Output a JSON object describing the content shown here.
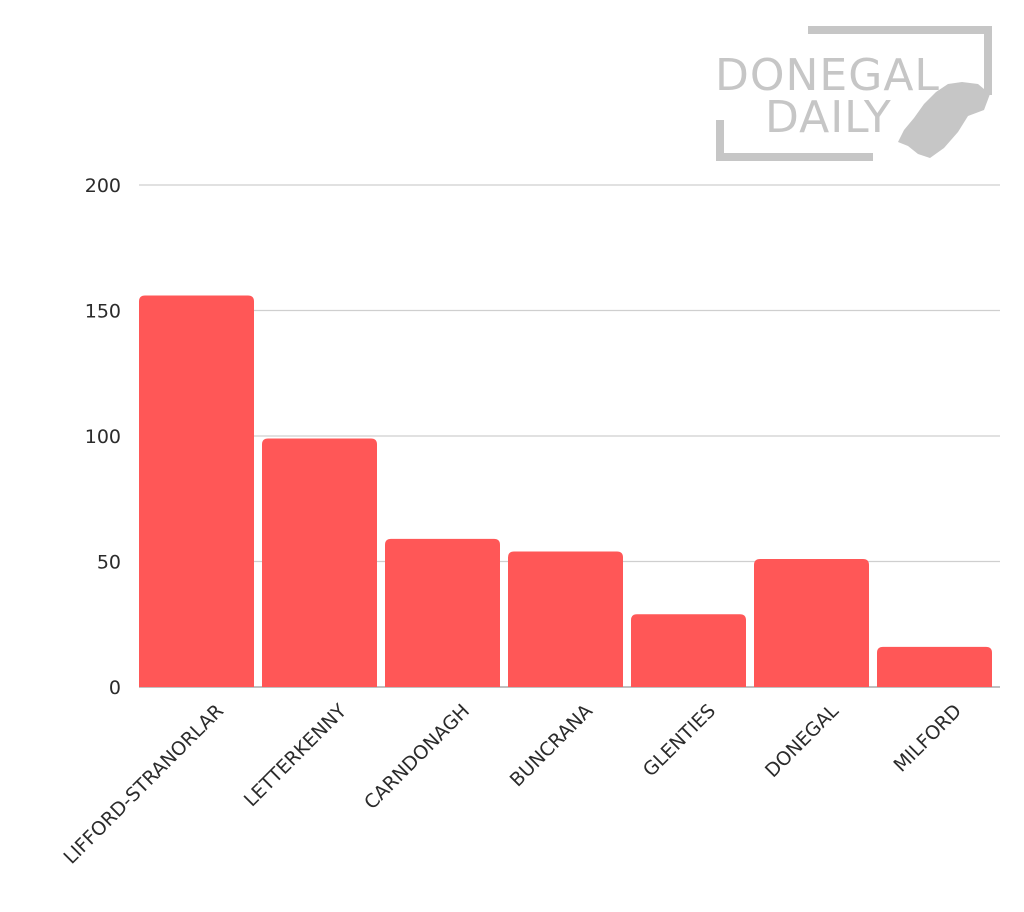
{
  "chart_data": {
    "type": "bar",
    "title": "",
    "xlabel": "",
    "ylabel": "",
    "categories": [
      "LIFFORD-STRANORLAR",
      "LETTERKENNY",
      "CARNDONAGH",
      "BUNCRANA",
      "GLENTIES",
      "DONEGAL",
      "MILFORD"
    ],
    "values": [
      156,
      99,
      59,
      54,
      29,
      51,
      16
    ],
    "ylim": [
      0,
      200
    ],
    "yticks": [
      "0",
      "50",
      "100",
      "150",
      "200"
    ],
    "grid": true,
    "bar_color": "#ff5757"
  },
  "logo": {
    "line1": "DONEGAL",
    "line2": "DAILY",
    "color": "#c6c6c6",
    "icon": "donegal-map-icon"
  }
}
